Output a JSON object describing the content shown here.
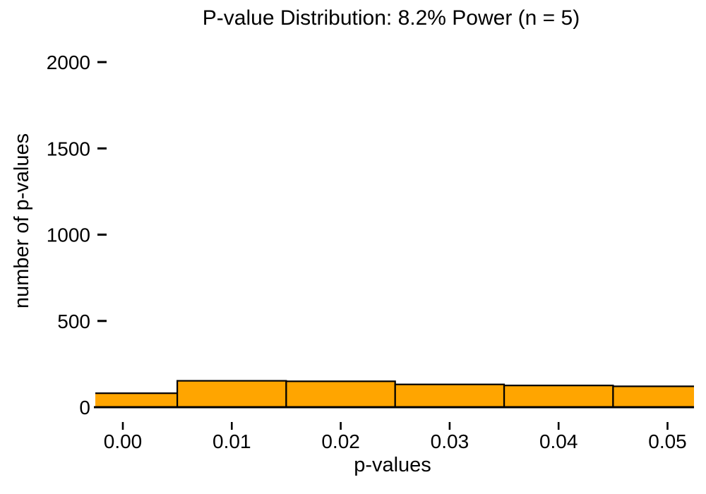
{
  "chart_data": {
    "type": "bar",
    "subtype": "histogram",
    "title": "P-value Distribution: 8.2% Power (n = 5)",
    "xlabel": "p-values",
    "ylabel": "number of p-values",
    "bins": [
      {
        "x0": -0.005,
        "x1": 0.005,
        "count": 81
      },
      {
        "x0": 0.005,
        "x1": 0.015,
        "count": 153
      },
      {
        "x0": 0.015,
        "x1": 0.025,
        "count": 150
      },
      {
        "x0": 0.025,
        "x1": 0.035,
        "count": 132
      },
      {
        "x0": 0.035,
        "x1": 0.045,
        "count": 126
      },
      {
        "x0": 0.045,
        "x1": 0.055,
        "count": 121
      }
    ],
    "x_ticks": {
      "values": [
        0,
        0.01,
        0.02,
        0.03,
        0.04,
        0.05
      ],
      "labels": [
        "0.00",
        "0.01",
        "0.02",
        "0.03",
        "0.04",
        "0.05"
      ]
    },
    "y_ticks": {
      "values": [
        0,
        500,
        1000,
        1500,
        2000
      ],
      "labels": [
        "0",
        "500",
        "1000",
        "1500",
        "2000"
      ]
    },
    "xlim": [
      -0.002527,
      0.05243
    ],
    "ylim": [
      0,
      2000
    ],
    "bar_fill": "#FFA500",
    "bar_stroke": "#000000",
    "axis_color": "#000000",
    "background": "#FFFFFF",
    "grid": false,
    "legend": false
  }
}
